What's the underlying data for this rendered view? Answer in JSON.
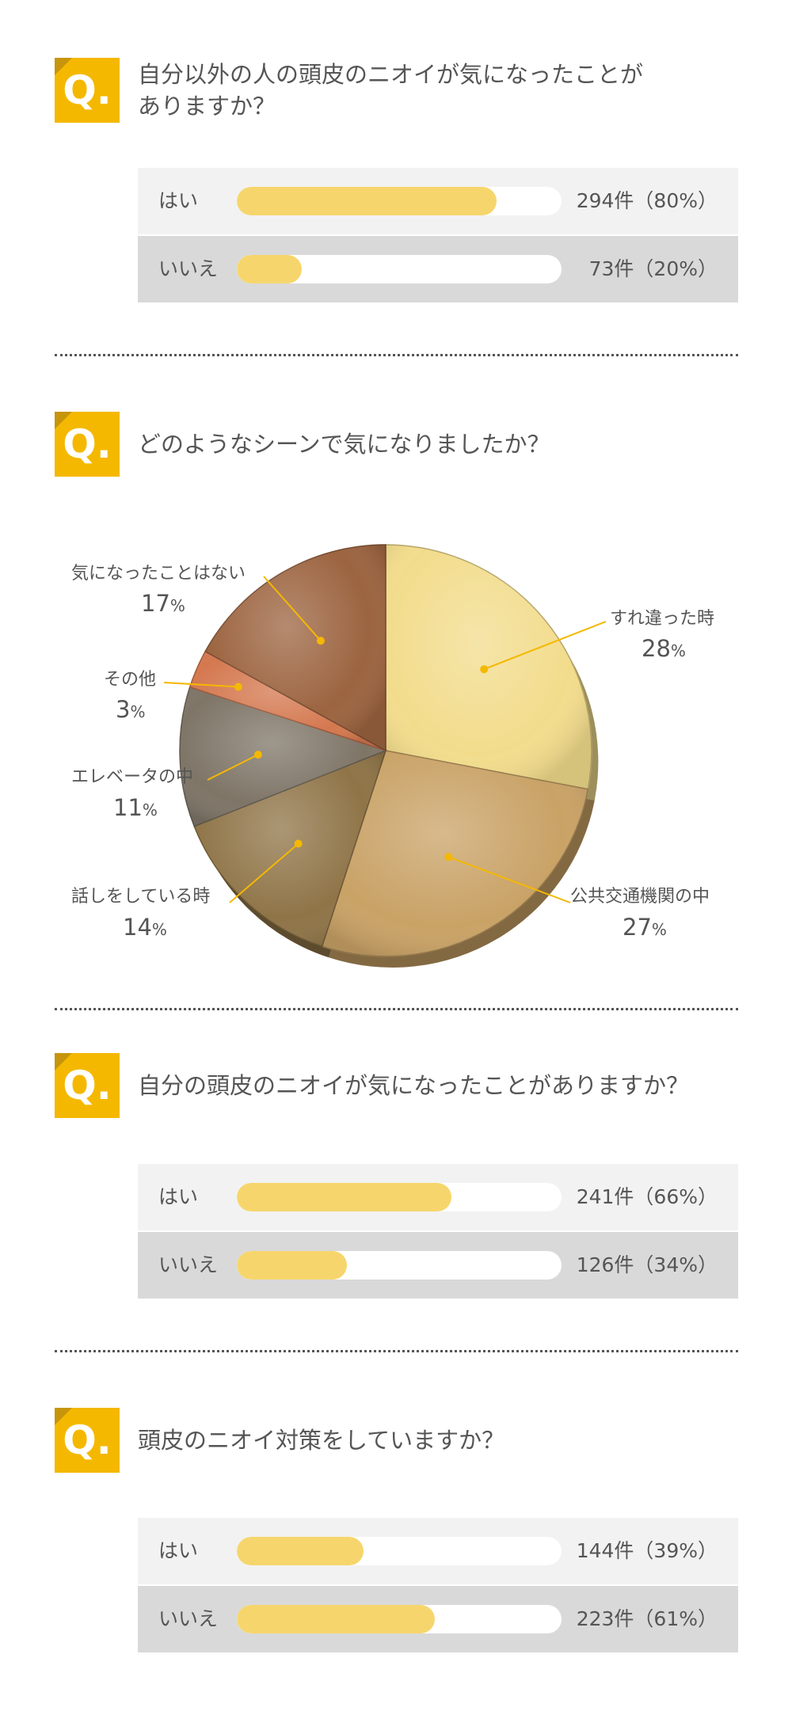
{
  "questions": [
    {
      "badge": "Q.",
      "title": "自分以外の人の頭皮のニオイが気になったことが\nありますか？",
      "answers": [
        {
          "label": "はい",
          "value": "294件（80%）",
          "fraction": 0.8
        },
        {
          "label": "いいえ",
          "value": "73件（20%）",
          "fraction": 0.2
        }
      ]
    },
    {
      "badge": "Q.",
      "title": "どのようなシーンで気になりましたか？"
    },
    {
      "badge": "Q.",
      "title": "自分の頭皮のニオイが気になったことがありますか？",
      "answers": [
        {
          "label": "はい",
          "value": "241件（66%）",
          "fraction": 0.66
        },
        {
          "label": "いいえ",
          "value": "126件（34%）",
          "fraction": 0.34
        }
      ]
    },
    {
      "badge": "Q.",
      "title": "頭皮のニオイ対策をしていますか？",
      "answers": [
        {
          "label": "はい",
          "value": "144件（39%）",
          "fraction": 0.39
        },
        {
          "label": "いいえ",
          "value": "223件（61%）",
          "fraction": 0.61
        }
      ]
    }
  ],
  "chart_data": {
    "type": "pie",
    "start_angle_deg": 0,
    "direction": "clockwise",
    "slices": [
      {
        "label": "すれ違った時",
        "value": 28,
        "pct_num": "28",
        "pct_sym": "%",
        "color": "#f2dc8c"
      },
      {
        "label": "公共交通機関の中",
        "value": 27,
        "pct_num": "27",
        "pct_sym": "%",
        "color": "#c9a266"
      },
      {
        "label": "話しをしている時",
        "value": 14,
        "pct_num": "14",
        "pct_sym": "%",
        "color": "#8f7447"
      },
      {
        "label": "エレベータの中",
        "value": 11,
        "pct_num": "11",
        "pct_sym": "%",
        "color": "#7e7567"
      },
      {
        "label": "その他",
        "value": 3,
        "pct_num": "3",
        "pct_sym": "%",
        "color": "#d4784f"
      },
      {
        "label": "気になったことはない",
        "value": 17,
        "pct_num": "17",
        "pct_sym": "%",
        "color": "#9c6440"
      }
    ],
    "leader_color": "#f5b800"
  }
}
